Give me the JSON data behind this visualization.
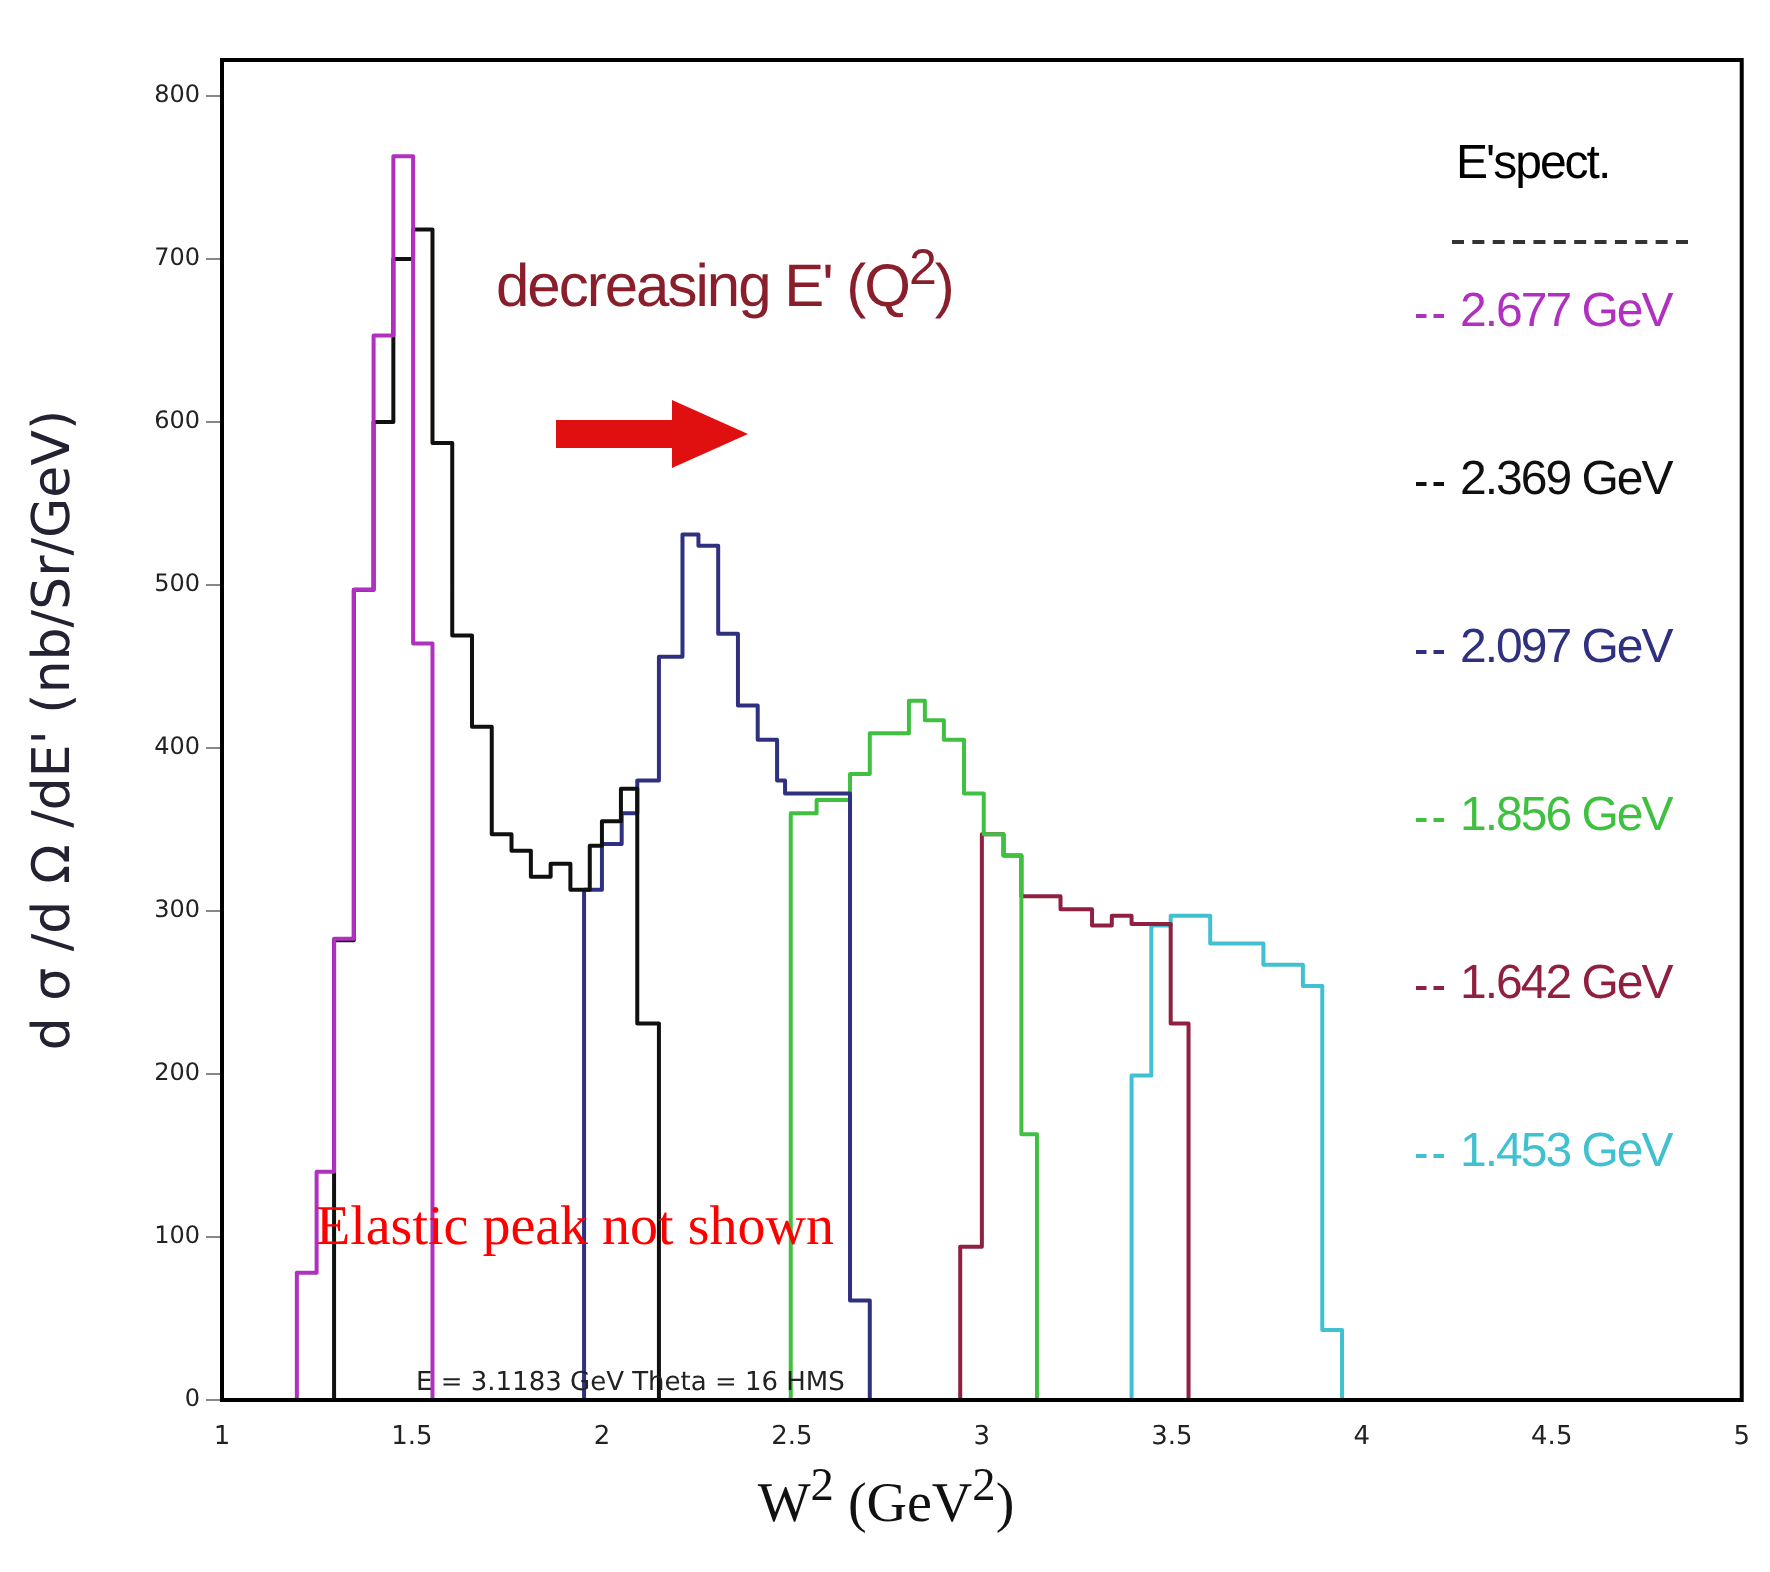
{
  "chart_data": {
    "type": "step",
    "xlabel": "W$^{2}$ (GeV$^{2}$)",
    "ylabel": "d σ /d Ω /dE' (nb/Sr/GeV)",
    "legend_title": "E'spect.",
    "legend": "right",
    "xlim": [
      1,
      5
    ],
    "xticks": [
      1,
      1.5,
      2,
      2.5,
      3,
      3.5,
      4,
      4.5,
      5
    ],
    "ylim": [
      0,
      822
    ],
    "yticks": [
      0,
      100,
      200,
      300,
      400,
      500,
      600,
      700,
      800
    ],
    "grid": false,
    "annotations": [
      "decreasing E' (Q$^{2}$)",
      "Elastic peak not shown",
      "E = 3.1183 GeV   Theta = 16   HMS"
    ],
    "series": [
      {
        "name": "2.677 GeV",
        "color": "#b030c0",
        "x": [
          1.197,
          1.197,
          1.249,
          1.295,
          1.347,
          1.399,
          1.451,
          1.503,
          1.554
        ],
        "values": [
          0,
          78,
          140,
          283,
          497,
          653,
          763,
          464,
          0
        ]
      },
      {
        "name": "2.369 GeV",
        "color": "#101010",
        "x": [
          1.295,
          1.295,
          1.347,
          1.399,
          1.451,
          1.503,
          1.554,
          1.606,
          1.658,
          1.71,
          1.762,
          1.813,
          1.865,
          1.917,
          1.968,
          2.0,
          2.05,
          2.093,
          2.15
        ],
        "values": [
          0,
          282,
          497,
          600,
          700,
          718,
          587,
          469,
          413,
          347,
          337,
          321,
          329,
          313,
          340,
          355,
          375,
          231,
          0
        ]
      },
      {
        "name": "2.097 GeV",
        "color": "#303080",
        "x": [
          1.953,
          1.953,
          2.0,
          2.052,
          2.093,
          2.15,
          2.212,
          2.254,
          2.306,
          2.358,
          2.41,
          2.461,
          2.482,
          2.653,
          2.705
        ],
        "values": [
          0,
          313,
          341,
          360,
          380,
          456,
          531,
          524,
          470,
          426,
          405,
          380,
          372,
          61,
          0
        ]
      },
      {
        "name": "1.856 GeV",
        "color": "#40c040",
        "x": [
          2.497,
          2.497,
          2.565,
          2.653,
          2.705,
          2.808,
          2.85,
          2.9,
          2.953,
          3.005,
          3.057,
          3.104,
          3.145
        ],
        "values": [
          0,
          360,
          368,
          384,
          409,
          429,
          417,
          405,
          372,
          347,
          334,
          163,
          0
        ]
      },
      {
        "name": "1.642 GeV",
        "color": "#902040",
        "x": [
          2.943,
          2.943,
          3.0,
          3.057,
          3.104,
          3.207,
          3.29,
          3.342,
          3.394,
          3.497,
          3.544
        ],
        "values": [
          0,
          94,
          347,
          334,
          309,
          301,
          291,
          297,
          292,
          231,
          0
        ]
      },
      {
        "name": "1.453 GeV",
        "color": "#40c0d0",
        "x": [
          3.394,
          3.394,
          3.446,
          3.497,
          3.601,
          3.741,
          3.845,
          3.896,
          3.948
        ],
        "values": [
          0,
          199,
          291,
          297,
          280,
          267,
          254,
          43,
          0
        ]
      }
    ]
  }
}
